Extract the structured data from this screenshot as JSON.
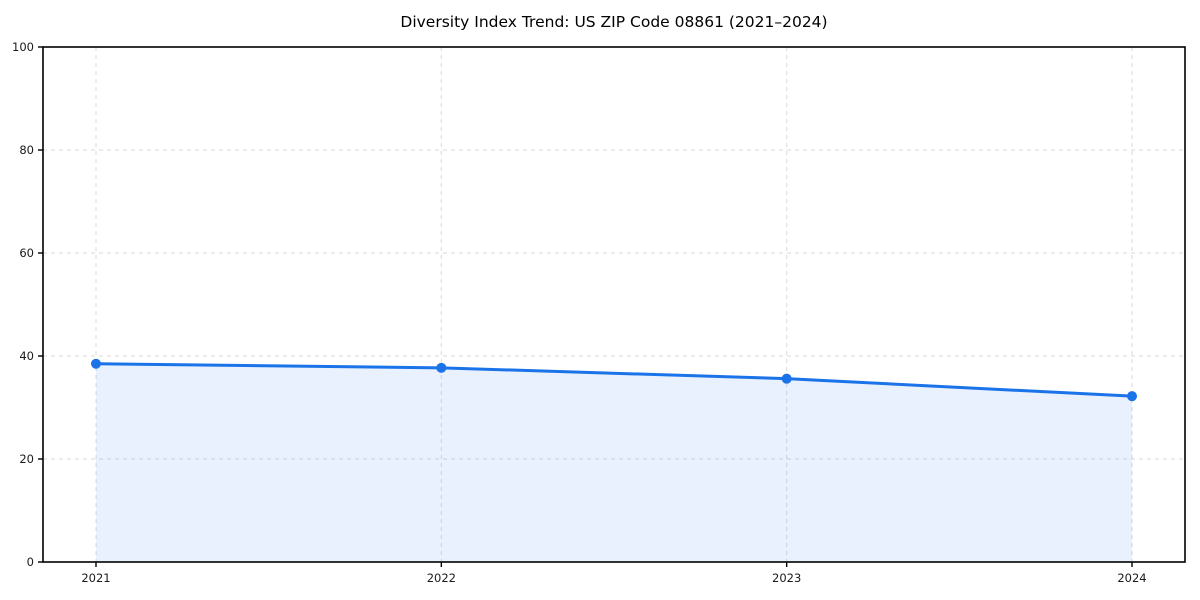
{
  "chart_data": {
    "type": "line",
    "title": "Diversity Index Trend: US ZIP Code 08861 (2021–2024)",
    "x": [
      2021,
      2022,
      2023,
      2024
    ],
    "xticks": [
      "2021",
      "2022",
      "2023",
      "2024"
    ],
    "series": [
      {
        "name": "Diversity Index",
        "values": [
          38.5,
          37.7,
          35.6,
          32.2
        ]
      }
    ],
    "xlabel": "",
    "ylabel": "",
    "ylim": [
      0,
      100
    ],
    "yticks": [
      0,
      20,
      40,
      60,
      80,
      100
    ],
    "grid": true,
    "grid_style": "dashed",
    "legend_position": "none",
    "area_fill": true,
    "marker": "circle",
    "colors": {
      "line": "#1a73e8",
      "marker": "#1a73e8",
      "fill": "#1a73e8",
      "fill_opacity": 0.1,
      "grid": "#d9d9d9",
      "axis": "#000000",
      "tick_label": "#1a1a1a",
      "title": "#000000",
      "background": "#ffffff"
    },
    "x_axis_padding_frac": 0.0464
  }
}
